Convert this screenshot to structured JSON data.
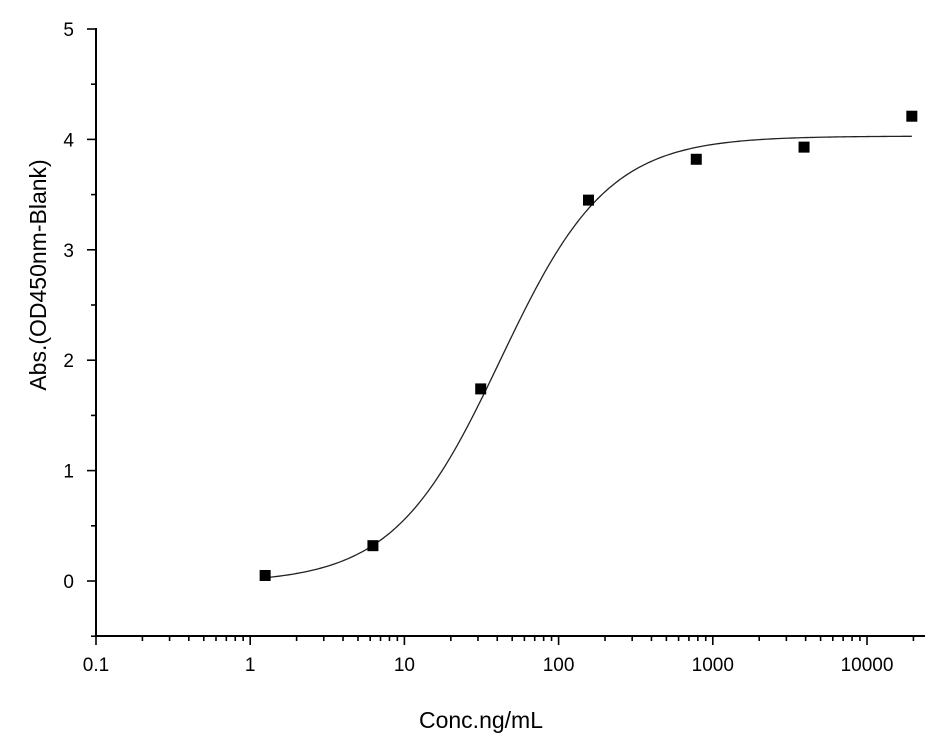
{
  "chart_data": {
    "type": "scatter",
    "title": "",
    "xlabel": "Conc.ng/mL",
    "ylabel": "Abs.(OD450nm-Blank)",
    "x_scale": "log",
    "xlim": [
      0.1,
      25000
    ],
    "ylim": [
      -0.5,
      5
    ],
    "x_ticks": [
      0.1,
      1,
      10,
      100,
      1000,
      10000
    ],
    "x_tick_labels": [
      "0.1",
      "1",
      "10",
      "100",
      "1000",
      "10000"
    ],
    "y_ticks": [
      0,
      1,
      2,
      3,
      4,
      5
    ],
    "y_tick_labels": [
      "0",
      "1",
      "2",
      "3",
      "4",
      "5"
    ],
    "grid": false,
    "legend": "none",
    "series": [
      {
        "kind": "points",
        "marker": "square",
        "color": "#000000",
        "x": [
          1.25,
          6.25,
          31.25,
          156.25,
          781.25,
          3906.25,
          19531.25
        ],
        "y": [
          0.05,
          0.32,
          1.74,
          3.45,
          3.82,
          3.93,
          4.21
        ]
      },
      {
        "kind": "fit",
        "color": "#222222",
        "model": "four-parameter logistic",
        "bottom": -0.02,
        "top": 4.03,
        "ec50": 42,
        "hill": 1.25,
        "x_range": [
          1.25,
          19531.25
        ]
      }
    ]
  }
}
